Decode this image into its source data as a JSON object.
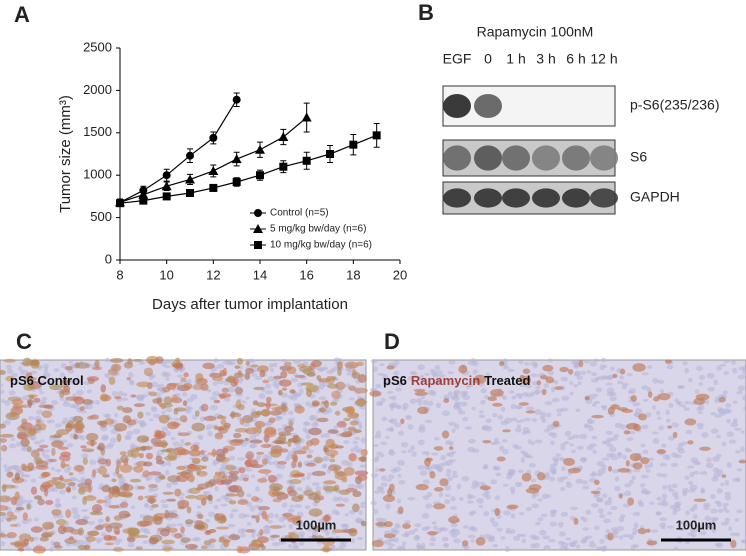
{
  "chart_data": {
    "type": "line",
    "ylabel": "Tumor size (mm³)",
    "xlabel": "Days after tumor implantation",
    "x": [
      8,
      9,
      10,
      11,
      12,
      13,
      14,
      15,
      16,
      17,
      18,
      19
    ],
    "series": [
      {
        "name": "Control (n=5)",
        "color": "#000000",
        "marker": "circle",
        "values": [
          680,
          820,
          1000,
          1230,
          1440,
          1890,
          null,
          null,
          null,
          null,
          null,
          null
        ],
        "errors": [
          40,
          50,
          70,
          80,
          70,
          80,
          null,
          null,
          null,
          null,
          null,
          null
        ]
      },
      {
        "name": "5 mg/kg bw/day (n=6)",
        "color": "#000000",
        "marker": "triangle",
        "values": [
          680,
          770,
          870,
          950,
          1050,
          1190,
          1300,
          1450,
          1680,
          null,
          null,
          null
        ],
        "errors": [
          30,
          40,
          50,
          60,
          70,
          80,
          90,
          90,
          170,
          null,
          null,
          null
        ]
      },
      {
        "name": "10 mg/kg bw/day (n=6)",
        "color": "#000000",
        "marker": "square",
        "values": [
          670,
          700,
          750,
          790,
          850,
          920,
          1000,
          1100,
          1170,
          1250,
          1360,
          1470
        ],
        "errors": [
          30,
          30,
          30,
          30,
          40,
          50,
          60,
          70,
          100,
          100,
          120,
          140
        ]
      }
    ],
    "xlim": [
      8,
      20
    ],
    "xticks": [
      8,
      10,
      12,
      14,
      16,
      18,
      20
    ],
    "ylim": [
      0,
      2500
    ],
    "yticks": [
      0,
      500,
      1000,
      1500,
      2000,
      2500
    ],
    "legend": "lower right"
  },
  "panel_labels": [
    "A",
    "B",
    "C",
    "D"
  ],
  "blot": {
    "treatment": "Rapamycin 100nM",
    "lanes": [
      "EGF",
      "0",
      "1 h",
      "3 h",
      "6 h",
      "12 h"
    ],
    "rows": [
      "p-S6(235/236)",
      "S6",
      "GAPDH"
    ]
  },
  "histology": [
    {
      "caption": [
        "pS6 Control"
      ],
      "scale_bar": "100µm"
    },
    {
      "caption": [
        "pS6",
        "Rapamycin",
        "Treated"
      ],
      "scale_bar": "100µm"
    }
  ]
}
